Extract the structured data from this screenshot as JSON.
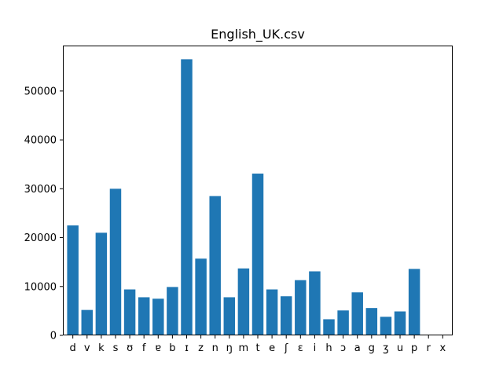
{
  "chart_data": {
    "type": "bar",
    "title": "English_UK.csv",
    "xlabel": "",
    "ylabel": "",
    "categories": [
      "d",
      "v",
      "k",
      "s",
      "ʊ",
      "f",
      "ɐ",
      "b",
      "ɪ",
      "z",
      "n",
      "ŋ",
      "m",
      "t",
      "e",
      "ʃ",
      "ɛ",
      "i",
      "h",
      "ɔ",
      "a",
      "g",
      "ʒ",
      "u",
      "p",
      "r",
      "x"
    ],
    "values": [
      22500,
      5200,
      21000,
      30000,
      9400,
      7800,
      7500,
      9900,
      56500,
      15700,
      28500,
      7800,
      13700,
      33100,
      9400,
      8000,
      11300,
      13100,
      3300,
      5100,
      8800,
      5600,
      3800,
      4900,
      13600,
      0,
      0
    ],
    "ylim": [
      0,
      59300
    ],
    "yticks": [
      0,
      10000,
      20000,
      30000,
      40000,
      50000
    ],
    "ytick_labels": [
      "0",
      "10000",
      "20000",
      "30000",
      "40000",
      "50000"
    ],
    "grid": false,
    "bar_color": "#1f77b4"
  }
}
